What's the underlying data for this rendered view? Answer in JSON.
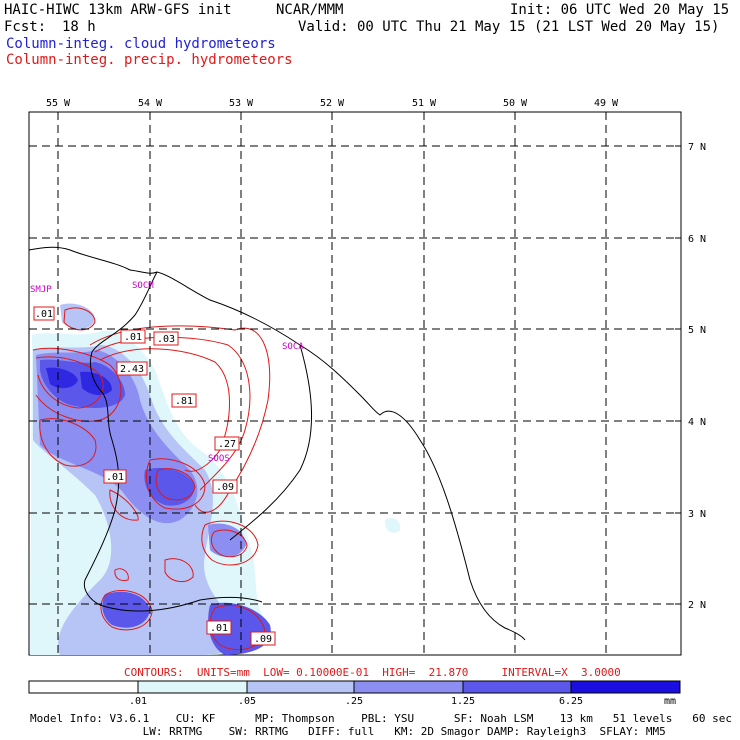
{
  "header": {
    "model": "HAIC-HIWC 13km ARW-GFS init",
    "org": "NCAR/MMM",
    "init": "Init: 06 UTC Wed 20 May 15",
    "fcst_label": "Fcst:",
    "fcst_value": "18 h",
    "valid": "Valid: 00 UTC Thu 21 May 15 (21 LST Wed 20 May 15)",
    "field_cloud": "Column-integ. cloud hydrometeors",
    "field_precip": "Column-integ. precip. hydrometeors"
  },
  "map": {
    "lon_labels": [
      "55 W",
      "54 W",
      "53 W",
      "52 W",
      "51 W",
      "50 W",
      "49 W"
    ],
    "lat_labels": [
      "7 N",
      "6 N",
      "5 N",
      "4 N",
      "3 N",
      "2 N"
    ],
    "stations": [
      "SMJP",
      "SOCM",
      "SOCA",
      "SOOS"
    ],
    "contour_labels": [
      ".01",
      ".01",
      ".03",
      "2.43",
      ".81",
      ".27",
      ".01",
      ".09",
      ".01",
      ".09"
    ]
  },
  "contours_info": "CONTOURS:  UNITS=mm  LOW= 0.10000E-01  HIGH=  21.870     INTERVAL=X  3.0000",
  "colorbar": {
    "ticks": [
      ".01",
      ".05",
      ".25",
      "1.25",
      "6.25"
    ],
    "unit": "mm",
    "colors": [
      "#ffffff",
      "#dff7fb",
      "#b7c4f6",
      "#8c8ff1",
      "#5a57ea",
      "#2e28e2",
      "#1a0fe0"
    ]
  },
  "footer": {
    "line1": "Model Info: V3.6.1    CU: KF      MP: Thompson    PBL: YSU      SF: Noah LSM    13 km   51 levels   60 sec",
    "line2": "                 LW: RRTMG    SW: RRTMG   DIFF: full   KM: 2D Smagor DAMP: Rayleigh3  SFLAY: MM5"
  }
}
